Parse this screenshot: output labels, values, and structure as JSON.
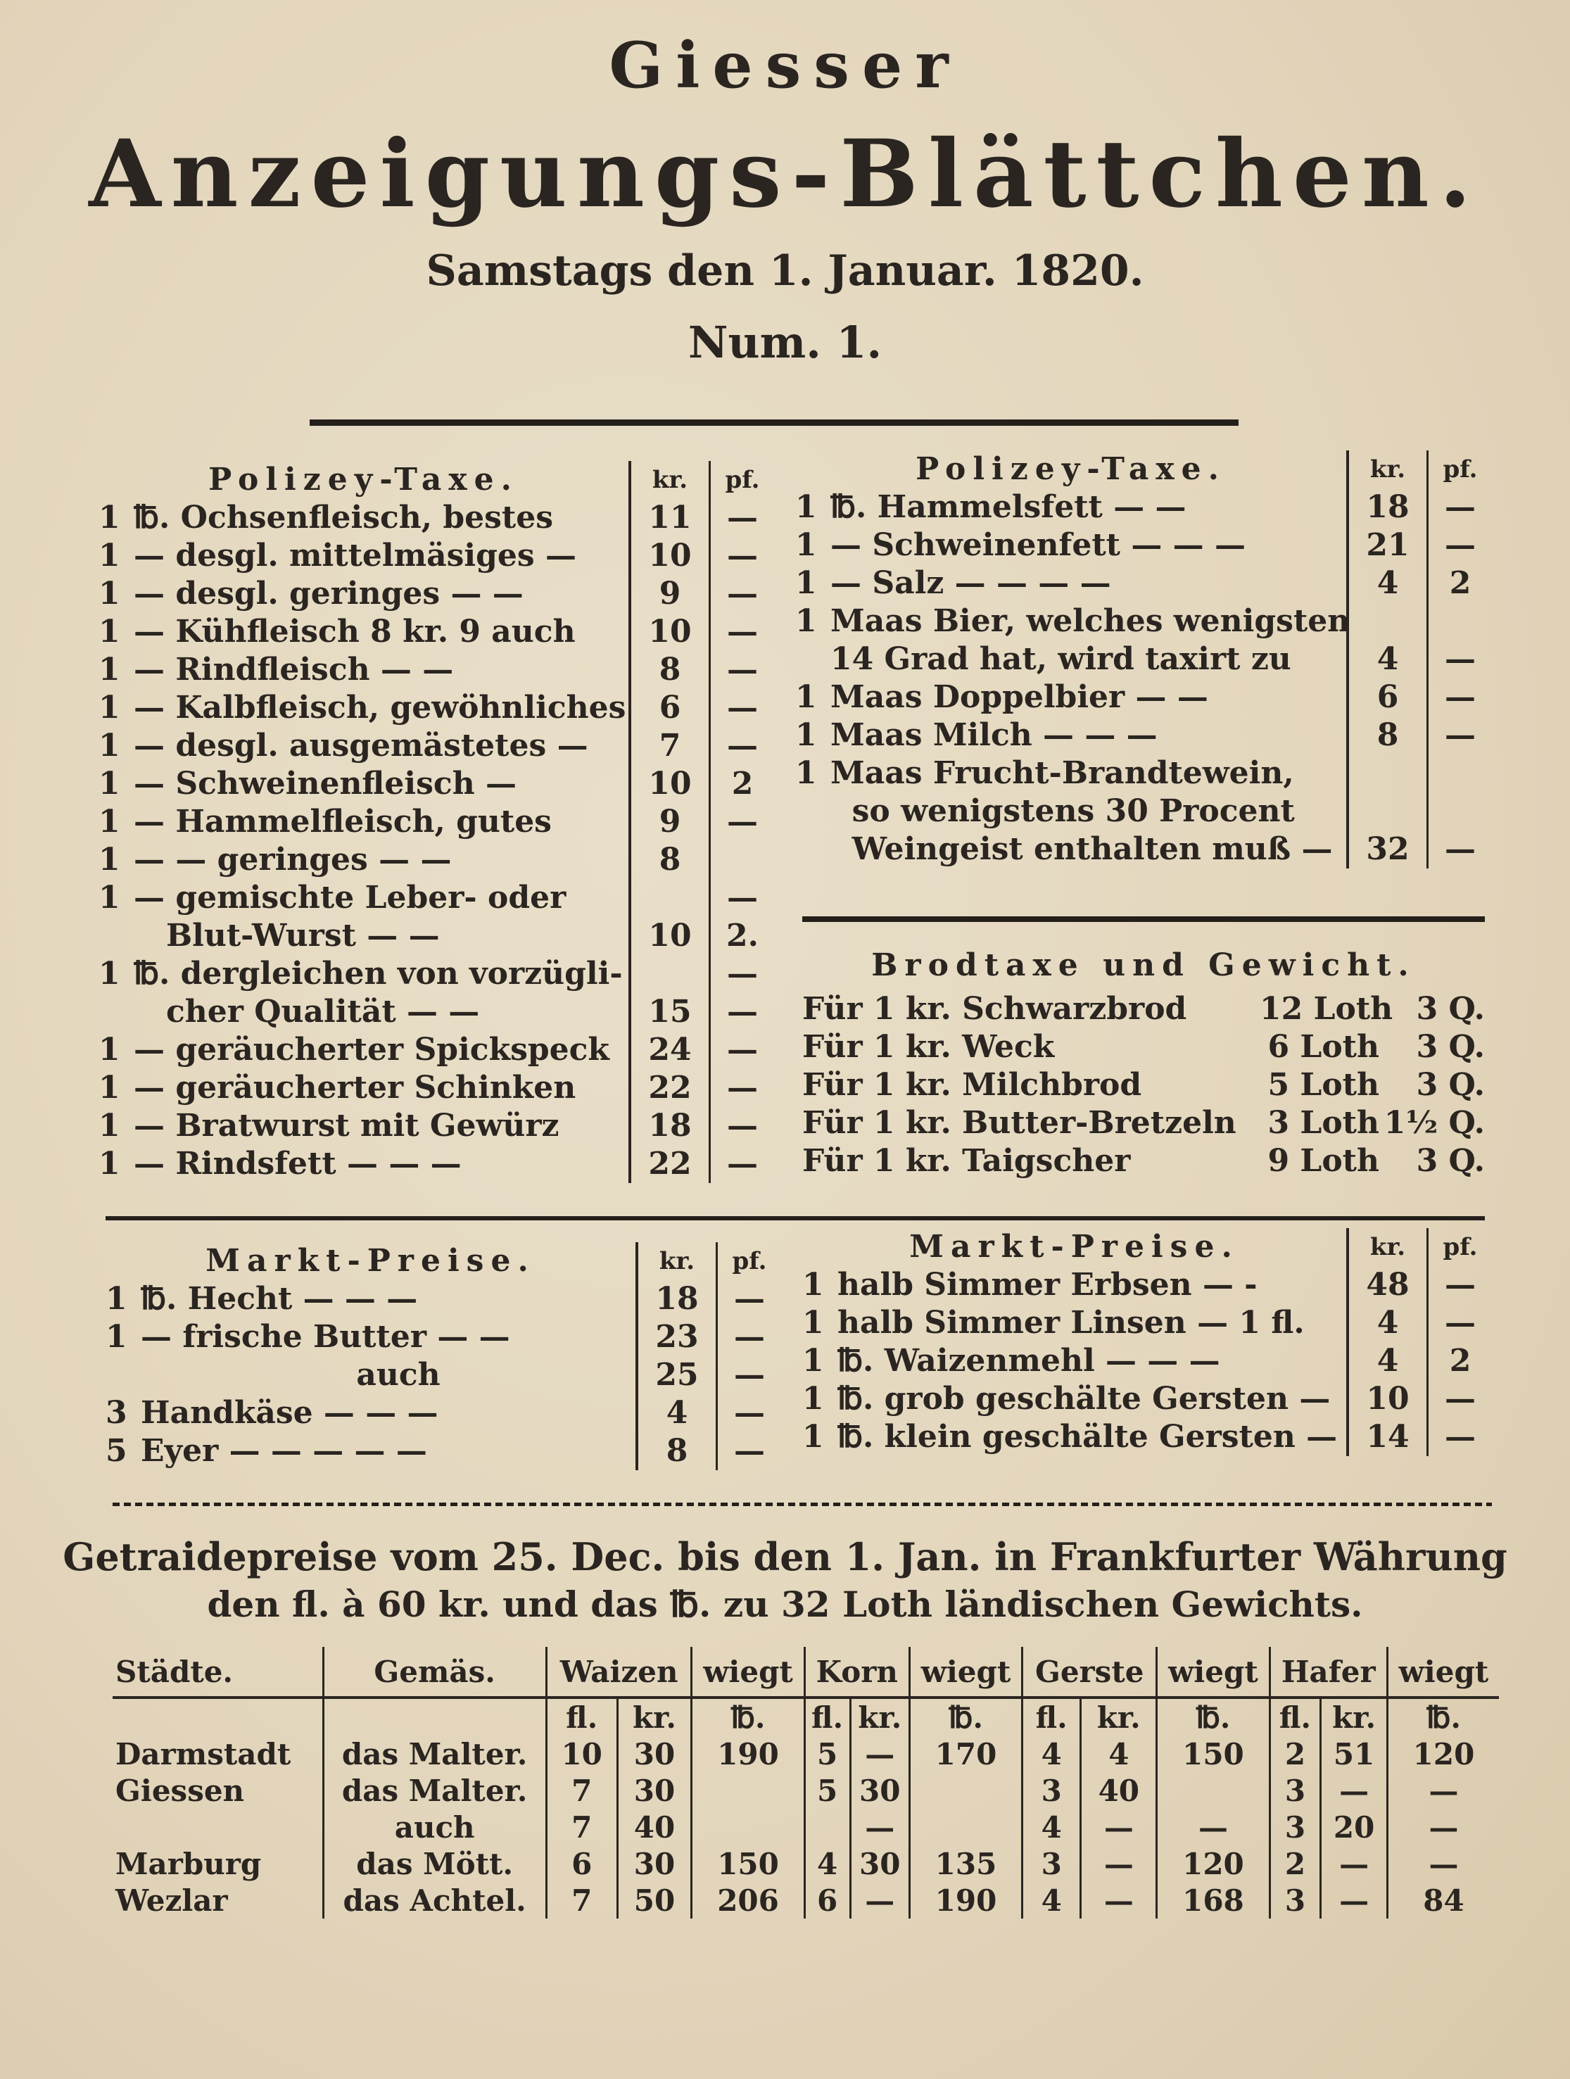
{
  "header": {
    "title_top": "Giesser",
    "title_main": "Anzeigungs-Blättchen.",
    "date": "Samstags den 1. Januar. 1820.",
    "issue": "Num. 1."
  },
  "polizey_left": {
    "heading": "Polizey-Taxe.",
    "col_kr": "kr.",
    "col_pf": "pf.",
    "rows": [
      {
        "n": "1",
        "item": "℔. Ochsenfleisch, bestes",
        "kr": "11",
        "pf": "—"
      },
      {
        "n": "1",
        "item": "— desgl. mittelmäsiges —",
        "kr": "10",
        "pf": "—"
      },
      {
        "n": "1",
        "item": "— desgl. geringes — —",
        "kr": "9",
        "pf": "—"
      },
      {
        "n": "1",
        "item": "— Kühfleisch 8 kr. 9 auch",
        "kr": "10",
        "pf": "—"
      },
      {
        "n": "1",
        "item": "— Rindfleisch — —",
        "kr": "8",
        "pf": "—"
      },
      {
        "n": "1",
        "item": "— Kalbfleisch, gewöhnliches",
        "kr": "6",
        "pf": "—"
      },
      {
        "n": "1",
        "item": "— desgl. ausgemästetes —",
        "kr": "7",
        "pf": "—"
      },
      {
        "n": "1",
        "item": "— Schweinenfleisch —",
        "kr": "10",
        "pf": "2"
      },
      {
        "n": "1",
        "item": "— Hammelfleisch, gutes",
        "kr": "9",
        "pf": "—"
      },
      {
        "n": "1",
        "item": "— — geringes — —",
        "kr": "8",
        "pf": ""
      },
      {
        "n": "1",
        "item": "— gemischte Leber- oder",
        "kr": "",
        "pf": "—"
      },
      {
        "n": "",
        "item": "   Blut-Wurst — —",
        "kr": "10",
        "pf": "2."
      },
      {
        "n": "1",
        "item": "℔. dergleichen von vorzügli-",
        "kr": "",
        "pf": "—"
      },
      {
        "n": "",
        "item": "   cher Qualität — —",
        "kr": "15",
        "pf": "—"
      },
      {
        "n": "1",
        "item": "— geräucherter Spickspeck",
        "kr": "24",
        "pf": "—"
      },
      {
        "n": "1",
        "item": "— geräucherter Schinken",
        "kr": "22",
        "pf": "—"
      },
      {
        "n": "1",
        "item": "— Bratwurst mit Gewürz",
        "kr": "18",
        "pf": "—"
      },
      {
        "n": "1",
        "item": "— Rindsfett — — —",
        "kr": "22",
        "pf": "—"
      }
    ]
  },
  "polizey_right": {
    "heading": "Polizey-Taxe.",
    "col_kr": "kr.",
    "col_pf": "pf.",
    "rows": [
      {
        "n": "1",
        "item": "℔. Hammelsfett — —",
        "kr": "18",
        "pf": "—"
      },
      {
        "n": "1",
        "item": "— Schweinenfett — — —",
        "kr": "21",
        "pf": "—"
      },
      {
        "n": "1",
        "item": "— Salz — — — —",
        "kr": "4",
        "pf": "2"
      },
      {
        "n": "1",
        "item": "Maas Bier, welches wenigstens",
        "kr": "",
        "pf": ""
      },
      {
        "n": "",
        "item": "14 Grad hat, wird taxirt zu",
        "kr": "4",
        "pf": "—"
      },
      {
        "n": "1",
        "item": "Maas Doppelbier — —",
        "kr": "6",
        "pf": "—"
      },
      {
        "n": "1",
        "item": "Maas Milch — — —",
        "kr": "8",
        "pf": "—"
      },
      {
        "n": "1",
        "item": "Maas Frucht-Brandtewein,",
        "kr": "",
        "pf": ""
      },
      {
        "n": "",
        "item": "  so wenigstens 30 Procent",
        "kr": "",
        "pf": ""
      },
      {
        "n": "",
        "item": "  Weingeist enthalten muß —",
        "kr": "32",
        "pf": "—"
      }
    ]
  },
  "brodtaxe": {
    "heading": "Brodtaxe und Gewicht.",
    "rows": [
      {
        "item": "Für 1 kr. Schwarzbrod",
        "loth": "12 Loth",
        "q": "3 Q."
      },
      {
        "item": "Für 1 kr. Weck",
        "loth": "6 Loth",
        "q": "3 Q."
      },
      {
        "item": "Für 1 kr. Milchbrod",
        "loth": "5 Loth",
        "q": "3 Q."
      },
      {
        "item": "Für 1 kr. Butter-Bretzeln",
        "loth": "3 Loth",
        "q": "1½ Q."
      },
      {
        "item": "Für 1 kr. Taigscher",
        "loth": "9 Loth",
        "q": "3 Q."
      }
    ]
  },
  "markt_left": {
    "heading": "Markt-Preise.",
    "col_kr": "kr.",
    "col_pf": "pf.",
    "rows": [
      {
        "n": "1",
        "item": "℔. Hecht — — —",
        "kr": "18",
        "pf": "—"
      },
      {
        "n": "1",
        "item": "— frische Butter — —",
        "kr": "23",
        "pf": "—"
      },
      {
        "n": "",
        "item": "                    auch",
        "kr": "25",
        "pf": "—"
      },
      {
        "n": "3",
        "item": "Handkäse — — —",
        "kr": "4",
        "pf": "—"
      },
      {
        "n": "5",
        "item": "Eyer — — — — —",
        "kr": "8",
        "pf": "—"
      }
    ]
  },
  "markt_right": {
    "heading": "Markt-Preise.",
    "col_kr": "kr.",
    "col_pf": "pf.",
    "rows": [
      {
        "n": "1",
        "item": "halb Simmer Erbsen — -",
        "kr": "48",
        "pf": "—"
      },
      {
        "n": "1",
        "item": "halb Simmer Linsen — 1 fl.",
        "kr": "4",
        "pf": "—"
      },
      {
        "n": "1",
        "item": "℔. Waizenmehl — — —",
        "kr": "4",
        "pf": "2"
      },
      {
        "n": "1",
        "item": "℔. grob geschälte Gersten —",
        "kr": "10",
        "pf": "—"
      },
      {
        "n": "1",
        "item": "℔. klein geschälte Gersten —",
        "kr": "14",
        "pf": "—"
      }
    ]
  },
  "getraide": {
    "heading_line1": "Getraidepreise vom 25. Dec. bis den 1. Jan. in Frankfurter Währung",
    "heading_line2": "den fl. à 60 kr. und das ℔. zu 32 Loth ländischen Gewichts.",
    "columns": [
      "Städte.",
      "Gemäs.",
      "Waizen",
      "wiegt",
      "Korn",
      "wiegt",
      "Gerste",
      "wiegt",
      "Hafer",
      "wiegt"
    ],
    "subcolumns": [
      "",
      "",
      "fl.",
      "kr.",
      "℔.",
      "fl.",
      "kr.",
      "℔.",
      "fl.",
      "kr.",
      "℔.",
      "fl.",
      "kr.",
      "℔."
    ],
    "rows": [
      [
        "Darmstadt",
        "das Malter.",
        "10",
        "30",
        "190",
        "5",
        "—",
        "170",
        "4",
        "4",
        "150",
        "2",
        "51",
        "120"
      ],
      [
        "Giessen",
        "das Malter.",
        "7",
        "30",
        "",
        "5",
        "30",
        "",
        "3",
        "40",
        "",
        "3",
        "—",
        "—"
      ],
      [
        "",
        "auch",
        "7",
        "40",
        "",
        "",
        "—",
        "",
        "4",
        "—",
        "—",
        "3",
        "20",
        "—"
      ],
      [
        "Marburg",
        "das Mött.",
        "6",
        "30",
        "150",
        "4",
        "30",
        "135",
        "3",
        "—",
        "120",
        "2",
        "—",
        "—"
      ],
      [
        "Wezlar",
        "das Achtel.",
        "7",
        "50",
        "206",
        "6",
        "—",
        "190",
        "4",
        "—",
        "168",
        "3",
        "—",
        "84"
      ]
    ]
  }
}
